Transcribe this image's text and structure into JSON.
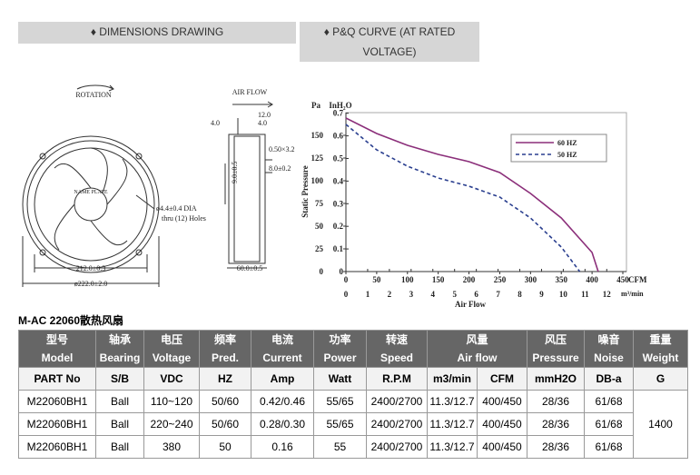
{
  "tabs": [
    "♦ DIMENSIONS DRAWING",
    "♦ P&Q CURVE (AT RATED VOLTAGE)"
  ],
  "drawing": {
    "rotation": "ROTATION",
    "air_flow": "AIR FLOW",
    "name_plate": "NAME PLATE",
    "hole_note_1": "ø4.4±0.4 DIA",
    "hole_note_2": "thru (12) Holes",
    "dim_212": "212.0±0.3",
    "dim_222": "ø222.0±2.0",
    "dim_12": "12.0",
    "dim_4a": "4.0",
    "dim_4b": "4.0",
    "dim_050": "0.50×3.2",
    "dim_8": "8.0±0.2",
    "dim_9": "9.0±0.5",
    "dim_60": "60.0±0.5"
  },
  "chart_data": {
    "type": "line",
    "y_unit": "Pa",
    "y2_unit": "InH₂O",
    "y_label": "Static Pressure",
    "x_label": "Air Flow",
    "x_unit": "CFM",
    "x2_unit": "m³/min",
    "xlim": [
      0,
      450
    ],
    "xticks": [
      0,
      50,
      100,
      150,
      200,
      250,
      300,
      350,
      400,
      450
    ],
    "x2lim": [
      0,
      12.74
    ],
    "x2ticks": [
      0,
      1,
      2,
      3,
      4,
      5,
      6,
      7,
      8,
      9,
      10,
      11,
      12
    ],
    "ylim": [
      0,
      175
    ],
    "yticks": [
      0,
      25,
      50,
      75,
      100,
      125,
      150
    ],
    "y2lim": [
      0,
      0.7027
    ],
    "y2ticks": [
      0,
      0.1,
      0.2,
      0.3,
      0.4,
      0.5,
      0.6,
      0.7
    ],
    "series": [
      {
        "name": "60 HZ",
        "color": "#8b2f7a",
        "line_style": "solid",
        "x": [
          0,
          50,
          100,
          150,
          200,
          250,
          300,
          350,
          400,
          410
        ],
        "values": [
          169,
          152,
          139,
          129,
          121,
          109,
          86,
          59,
          21,
          0
        ]
      },
      {
        "name": "50 HZ",
        "color": "#2a3f8f",
        "line_style": "dashed",
        "x": [
          0,
          50,
          100,
          150,
          200,
          250,
          300,
          350,
          380
        ],
        "values": [
          162,
          134,
          116,
          103,
          94,
          82,
          59,
          27,
          0
        ]
      }
    ]
  },
  "table": {
    "title": "M-AC 22060散热风扇",
    "header": [
      [
        "型号",
        "Model"
      ],
      [
        "轴承",
        "Bearing"
      ],
      [
        "电压",
        "Voltage"
      ],
      [
        "频率",
        "Pred."
      ],
      [
        "电流",
        "Current"
      ],
      [
        "功率",
        "Power"
      ],
      [
        "转速",
        "Speed"
      ],
      [
        "风量",
        "Air flow"
      ],
      [
        "风压",
        "Pressure"
      ],
      [
        "噪音",
        "Noise"
      ],
      [
        "重量",
        "Weight"
      ]
    ],
    "units": [
      "PART No",
      "S/B",
      "VDC",
      "HZ",
      "Amp",
      "Watt",
      "R.P.M",
      "m3/min",
      "CFM",
      "mmH2O",
      "DB-a",
      "G"
    ],
    "rows": [
      [
        "M22060BH1",
        "Ball",
        "110~120",
        "50/60",
        "0.42/0.46",
        "55/65",
        "2400/2700",
        "11.3/12.7",
        "400/450",
        "28/36",
        "61/68"
      ],
      [
        "M22060BH1",
        "Ball",
        "220~240",
        "50/60",
        "0.28/0.30",
        "55/65",
        "2400/2700",
        "11.3/12.7",
        "400/450",
        "28/36",
        "61/68"
      ],
      [
        "M22060BH1",
        "Ball",
        "380",
        "50",
        "0.16",
        "55",
        "2400/2700",
        "11.3/12.7",
        "400/450",
        "28/36",
        "61/68"
      ]
    ],
    "weight": "1400"
  }
}
